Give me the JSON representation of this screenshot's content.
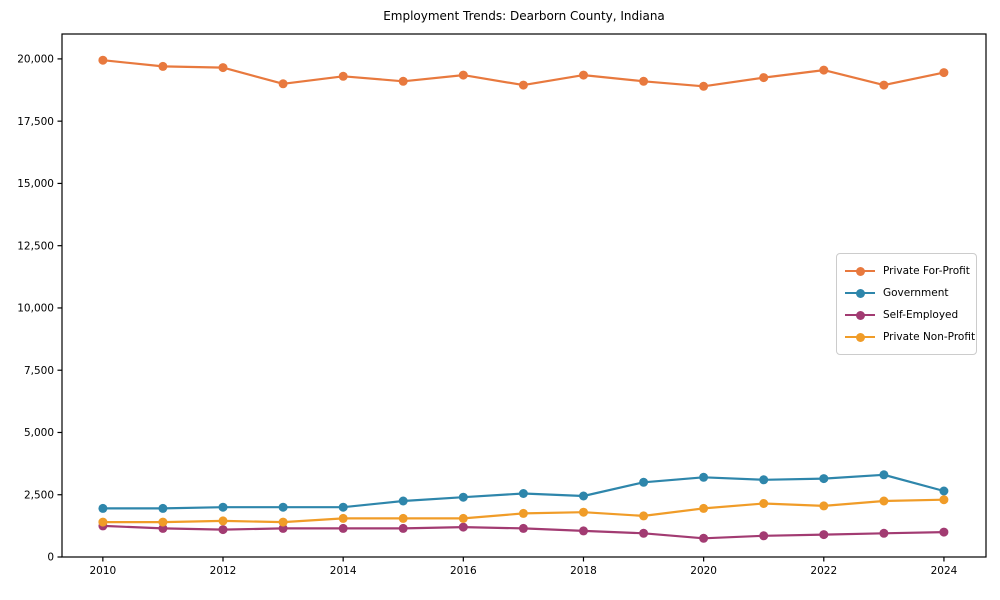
{
  "chart_data": {
    "type": "line",
    "title": "Employment Trends: Dearborn County, Indiana",
    "xlabel": "",
    "ylabel": "",
    "x": [
      2010,
      2011,
      2012,
      2013,
      2014,
      2015,
      2016,
      2017,
      2018,
      2019,
      2020,
      2021,
      2022,
      2023,
      2024
    ],
    "series": [
      {
        "name": "Private For-Profit",
        "color": "#e8793e",
        "values": [
          19950,
          19700,
          19650,
          19000,
          19300,
          19100,
          19350,
          18950,
          19350,
          19100,
          18900,
          19250,
          19550,
          18950,
          19450
        ]
      },
      {
        "name": "Government",
        "color": "#2e86ab",
        "values": [
          1950,
          1950,
          2000,
          2000,
          2000,
          2250,
          2400,
          2550,
          2450,
          3000,
          3200,
          3100,
          3150,
          3300,
          2650
        ]
      },
      {
        "name": "Self-Employed",
        "color": "#a23b72",
        "values": [
          1250,
          1150,
          1100,
          1150,
          1150,
          1150,
          1200,
          1150,
          1050,
          950,
          750,
          850,
          900,
          950,
          1000
        ]
      },
      {
        "name": "Private Non-Profit",
        "color": "#f09c28",
        "values": [
          1400,
          1400,
          1450,
          1400,
          1550,
          1550,
          1550,
          1750,
          1800,
          1650,
          1950,
          2150,
          2050,
          2250,
          2300
        ]
      }
    ],
    "xticks": {
      "values": [
        2010,
        2012,
        2014,
        2016,
        2018,
        2020,
        2022,
        2024
      ],
      "labels": [
        "2010",
        "2012",
        "2014",
        "2016",
        "2018",
        "2020",
        "2022",
        "2024"
      ]
    },
    "yticks": {
      "values": [
        0,
        2500,
        5000,
        7500,
        10000,
        12500,
        15000,
        17500,
        20000
      ],
      "labels": [
        "0",
        "2,500",
        "5,000",
        "7,500",
        "10,000",
        "12,500",
        "15,000",
        "17,500",
        "20,000"
      ]
    },
    "xlim": [
      2009.32,
      2024.7
    ],
    "ylim": [
      0,
      21000
    ],
    "grid": false,
    "legend": {
      "position": "center-right"
    },
    "axis_color": "#000000",
    "background_color": "#ffffff"
  }
}
